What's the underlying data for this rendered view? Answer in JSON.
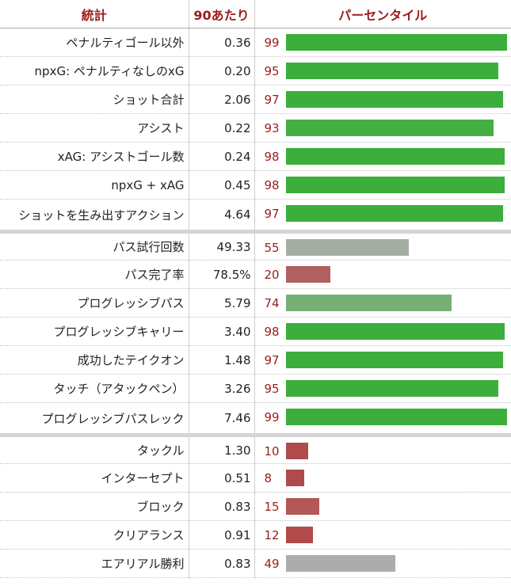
{
  "header": {
    "stat": "統計",
    "per90": "90あたり",
    "percentile": "パーセンタイル"
  },
  "colors": {
    "header_text": "#9c1c1c",
    "high": "#3bae3b"
  },
  "groups": [
    {
      "rows": [
        {
          "stat": "ペナルティゴール以外",
          "per90": "0.36",
          "percentile": 99,
          "color": "#3bae3b"
        },
        {
          "stat": "npxG: ペナルティなしのxG",
          "per90": "0.20",
          "percentile": 95,
          "color": "#3bae3b"
        },
        {
          "stat": "ショット合計",
          "per90": "2.06",
          "percentile": 97,
          "color": "#3bae3b"
        },
        {
          "stat": "アシスト",
          "per90": "0.22",
          "percentile": 93,
          "color": "#44b044"
        },
        {
          "stat": "xAG: アシストゴール数",
          "per90": "0.24",
          "percentile": 98,
          "color": "#3bae3b"
        },
        {
          "stat": "npxG + xAG",
          "per90": "0.45",
          "percentile": 98,
          "color": "#3bae3b"
        },
        {
          "stat": "ショットを生み出すアクション",
          "per90": "4.64",
          "percentile": 97,
          "color": "#3bae3b"
        }
      ]
    },
    {
      "rows": [
        {
          "stat": "パス試行回数",
          "per90": "49.33",
          "percentile": 55,
          "color": "#a5aea5"
        },
        {
          "stat": "パス完了率",
          "per90": "78.5%",
          "percentile": 20,
          "color": "#b06060"
        },
        {
          "stat": "プログレッシブパス",
          "per90": "5.79",
          "percentile": 74,
          "color": "#74b074"
        },
        {
          "stat": "プログレッシブキャリー",
          "per90": "3.40",
          "percentile": 98,
          "color": "#3bae3b"
        },
        {
          "stat": "成功したテイクオン",
          "per90": "1.48",
          "percentile": 97,
          "color": "#3bae3b"
        },
        {
          "stat": "タッチ（アタックペン）",
          "per90": "3.26",
          "percentile": 95,
          "color": "#3bae3b"
        },
        {
          "stat": "プログレッシブパスレック",
          "per90": "7.46",
          "percentile": 99,
          "color": "#3bae3b"
        }
      ]
    },
    {
      "rows": [
        {
          "stat": "タックル",
          "per90": "1.30",
          "percentile": 10,
          "color": "#b14a4a"
        },
        {
          "stat": "インターセプト",
          "per90": "0.51",
          "percentile": 8,
          "color": "#b14a4a"
        },
        {
          "stat": "ブロック",
          "per90": "0.83",
          "percentile": 15,
          "color": "#b35757"
        },
        {
          "stat": "クリアランス",
          "per90": "0.91",
          "percentile": 12,
          "color": "#b14a4a"
        },
        {
          "stat": "エアリアル勝利",
          "per90": "0.83",
          "percentile": 49,
          "color": "#acacac"
        }
      ]
    }
  ]
}
